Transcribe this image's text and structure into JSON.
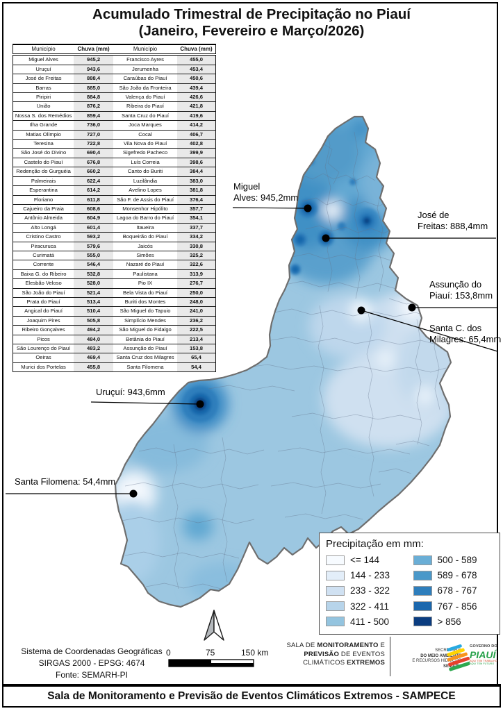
{
  "title": {
    "line1": "Acumulado Trimestral de Precipitação no Piauí",
    "line2": "(Janeiro, Fevereiro e Março/2026)"
  },
  "table": {
    "headers": [
      "Município",
      "Chuva (mm)",
      "Município",
      "Chuva (mm)"
    ],
    "rows": [
      [
        "Miguel Alves",
        "945,2",
        "Francisco Ayres",
        "455,0"
      ],
      [
        "Uruçuí",
        "943,6",
        "Jerumenha",
        "453,4"
      ],
      [
        "José de Freitas",
        "888,4",
        "Caraúbas do Piauí",
        "450,6"
      ],
      [
        "Barras",
        "885,0",
        "São João da Fronteira",
        "439,4"
      ],
      [
        "Piripiri",
        "884,8",
        "Valença do Piauí",
        "426,6"
      ],
      [
        "União",
        "876,2",
        "Ribeira do Piauí",
        "421,8"
      ],
      [
        "Nossa S. dos Remédios",
        "859,4",
        "Santa Cruz do Piauí",
        "419,6"
      ],
      [
        "Ilha Grande",
        "736,0",
        "Joca Marques",
        "414,2"
      ],
      [
        "Matias Olímpio",
        "727,0",
        "Cocal",
        "406,7"
      ],
      [
        "Teresina",
        "722,8",
        "Vila Nova do Piauí",
        "402,8"
      ],
      [
        "São José do Divino",
        "690,4",
        "Sigefredo Pacheco",
        "399,9"
      ],
      [
        "Castelo do Piauí",
        "676,8",
        "Luís Correia",
        "398,6"
      ],
      [
        "Redenção do Gurguéia",
        "660,2",
        "Canto do Buriti",
        "384,4"
      ],
      [
        "Palmeirais",
        "622,4",
        "Luzilândia",
        "383,0"
      ],
      [
        "Esperantina",
        "614,2",
        "Avelino Lopes",
        "381,8"
      ],
      [
        "Floriano",
        "611,8",
        "São F. de Assis do Piauí",
        "376,4"
      ],
      [
        "Cajueiro da Praia",
        "608,6",
        "Monsenhor Hipólito",
        "357,7"
      ],
      [
        "Antônio Almeida",
        "604,9",
        "Lagoa do Barro do Piauí",
        "354,1"
      ],
      [
        "Alto Longá",
        "601,4",
        "Itaueira",
        "337,7"
      ],
      [
        "Cristino Castro",
        "593,2",
        "Boqueirão do Piauí",
        "334,2"
      ],
      [
        "Piracuruca",
        "579,6",
        "Jaicós",
        "330,8"
      ],
      [
        "Curimatá",
        "555,0",
        "Simões",
        "325,2"
      ],
      [
        "Corrente",
        "546,4",
        "Nazaré do Piauí",
        "322,6"
      ],
      [
        "Baixa G. do Ribeiro",
        "532,8",
        "Paulistana",
        "313,9"
      ],
      [
        "Elesbão Veloso",
        "528,0",
        "Pio IX",
        "276,7"
      ],
      [
        "São João do Piauí",
        "521,4",
        "Bela Vista do Piauí",
        "250,0"
      ],
      [
        "Prata do Piauí",
        "513,4",
        "Buriti dos Montes",
        "248,0"
      ],
      [
        "Angical do Piauí",
        "510,4",
        "São Miguel do Tapuio",
        "241,0"
      ],
      [
        "Joaquim Pires",
        "505,8",
        "Simplício Mendes",
        "236,2"
      ],
      [
        "Ribeiro Gonçalves",
        "494,2",
        "São Miguel do Fidalgo",
        "222,5"
      ],
      [
        "Picos",
        "484,0",
        "Betânia do Piauí",
        "213,4"
      ],
      [
        "São Lourenço do Piauí",
        "483,2",
        "Assunção do Piauí",
        "153,8"
      ],
      [
        "Oeiras",
        "469,4",
        "Santa Cruz dos Milagres",
        "65,4"
      ],
      [
        "Murici dos Portelas",
        "455,8",
        "Santa Filomena",
        "54,4"
      ]
    ]
  },
  "map": {
    "annotations": [
      {
        "id": "miguel-alves",
        "line1": "Miguel",
        "line2": "Alves: 945,2mm"
      },
      {
        "id": "jose-de-freitas",
        "line1": "José de",
        "line2": "Freitas: 888,4mm"
      },
      {
        "id": "assuncao-do-piaui",
        "line1": "Assunção do",
        "line2": "Piauí: 153,8mm"
      },
      {
        "id": "santa-cruz-dos-milagres",
        "line1": "Santa C. dos",
        "line2": "Milagres: 65,4mm"
      },
      {
        "id": "urucui",
        "line1": "Uruçuí: 943,6mm",
        "line2": ""
      },
      {
        "id": "santa-filomena",
        "line1": "Santa Filomena: 54,4mm",
        "line2": ""
      }
    ]
  },
  "legend": {
    "title": "Precipitação em mm:",
    "classes": [
      {
        "label": "<= 144",
        "color": "#f7fbff"
      },
      {
        "label": "144 - 233",
        "color": "#e3eef9"
      },
      {
        "label": "233 - 322",
        "color": "#d0e1f2"
      },
      {
        "label": "322 - 411",
        "color": "#b7d4ea"
      },
      {
        "label": "411 - 500",
        "color": "#94c4df"
      },
      {
        "label": "500 - 589",
        "color": "#6aaed6"
      },
      {
        "label": "589 - 678",
        "color": "#4a98c9"
      },
      {
        "label": "678 - 767",
        "color": "#2e7ebc"
      },
      {
        "label": "767 - 856",
        "color": "#1b67ad"
      },
      {
        "label": "> 856",
        "color": "#0b3d80"
      }
    ]
  },
  "scalebar": {
    "t0": "0",
    "t1": "75",
    "t2": "150 km"
  },
  "footer": {
    "crs_line1": "Sistema de Coordenadas Geográficas",
    "crs_line2": "SIRGAS 2000 - EPSG: 4674",
    "crs_line3": "Fonte: SEMARH-PI",
    "sala": [
      {
        "pre": "SALA DE ",
        "bold": "MONITORAMENTO",
        "post": " E"
      },
      {
        "pre": "",
        "bold": "PREVISÃO",
        "post": " DE EVENTOS"
      },
      {
        "pre": "CLIMÁTICOS ",
        "bold": "EXTREMOS",
        "post": ""
      }
    ],
    "semarh": {
      "l1": "SECRETARIA",
      "l2": "DO MEIO AMBIENTE",
      "l3": "E RECURSOS HÍDRICOS",
      "l4": "SEMARH"
    },
    "governo": {
      "top": "GOVERNO DO",
      "name": "PIAUÍ",
      "tag1": "AQUI TEM TRABALHO",
      "tag2": "AQUI TEM FUTURO"
    }
  },
  "banner": {
    "text": "Sala de Monitoramento e Previsão de Eventos Climáticos Extremos - SAMPECE"
  },
  "icons": {
    "north_arrow": "north-arrow",
    "location_dot": "location-dot"
  },
  "palette": {
    "map_base": "#9cc7e1",
    "state_border": "#6e6e6e",
    "leader_line": "#000000"
  }
}
